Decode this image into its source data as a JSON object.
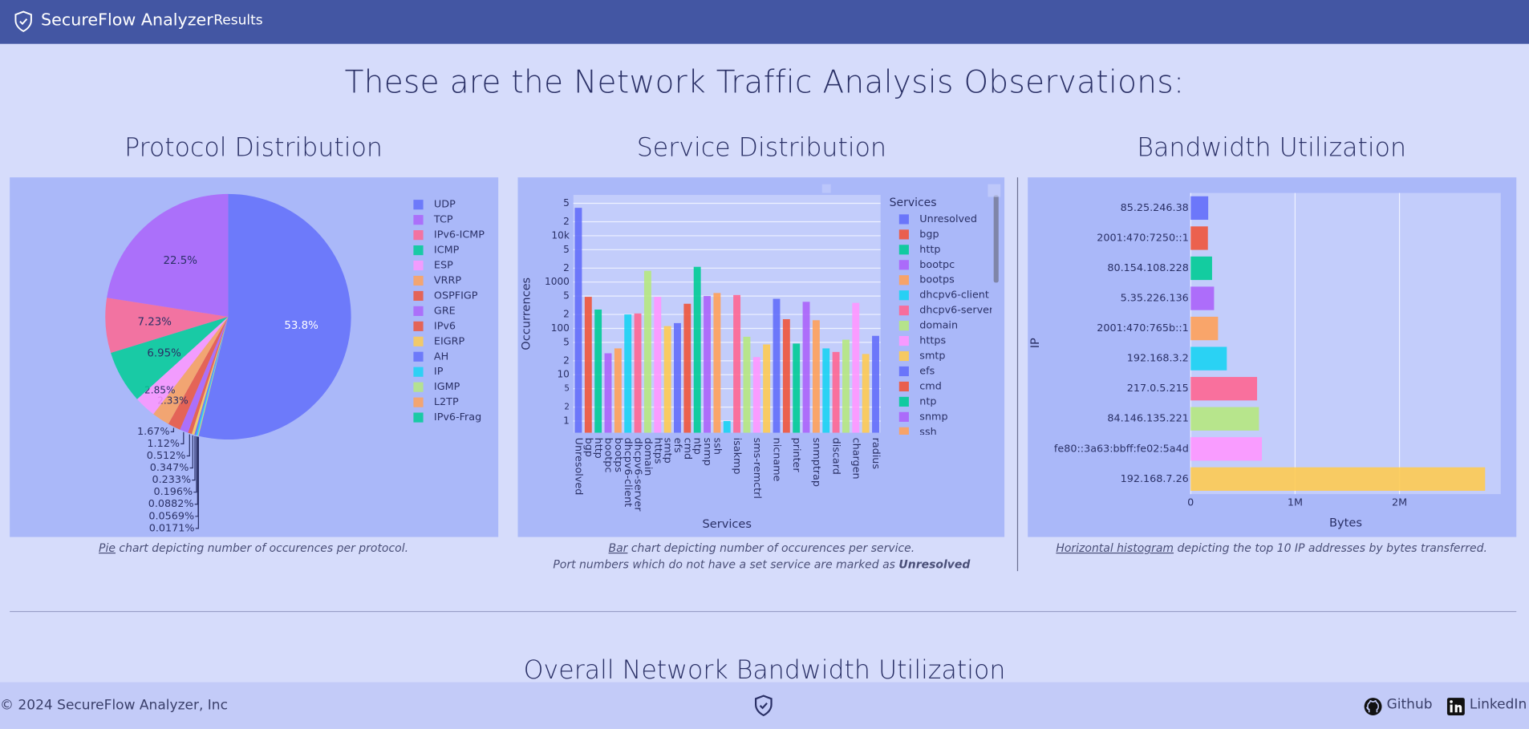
{
  "header": {
    "brand": "SecureFlow Analyzer",
    "nav": "Results"
  },
  "page_title": "These are the Network Traffic Analysis Observations:",
  "chart_data": [
    {
      "type": "pie",
      "title": "Protocol Distribution",
      "categories": [
        "UDP",
        "TCP",
        "IPv6-ICMP",
        "ICMP",
        "ESP",
        "VRRP",
        "OSPFIGP",
        "GRE",
        "IPv6",
        "EIGRP",
        "AH",
        "IP",
        "IGMP",
        "L2TP",
        "IPv6-Frag"
      ],
      "values": [
        53.8,
        22.5,
        7.23,
        6.95,
        2.85,
        2.33,
        1.67,
        1.12,
        0.512,
        0.347,
        0.233,
        0.196,
        0.0882,
        0.0569,
        0.0171
      ],
      "value_labels": [
        "53.8%",
        "22.5%",
        "7.23%",
        "6.95%",
        "2.85%",
        "2.33%",
        "1.67%",
        "1.12%",
        "0.512%",
        "0.347%",
        "0.233%",
        "0.196%",
        "0.0882%",
        "0.0569%",
        "0.0171%"
      ],
      "colors": [
        "#636efa",
        "#ab63fa",
        "#FF6692",
        "#00cc96",
        "#FF97FF",
        "#FFA15A",
        "#EF553B",
        "#ab63fa",
        "#EF553B",
        "#FECB52",
        "#636efa",
        "#19d3f3",
        "#B6E880",
        "#FFA15A",
        "#00cc96"
      ],
      "legend": "right"
    },
    {
      "type": "bar",
      "orientation": "v",
      "title": "Service Distribution",
      "categories": [
        "Unresolved",
        "bgp",
        "http",
        "bootpc",
        "bootps",
        "dhcpv6-client",
        "dhcpv6-server",
        "domain",
        "https",
        "smtp",
        "efs",
        "cmd",
        "ntp",
        "snmp",
        "ssh",
        null,
        "isakmp",
        null,
        "sms-remctrl",
        null,
        "nicname",
        null,
        "printer",
        null,
        "snmptrap",
        null,
        "discard",
        null,
        "chargen",
        null,
        "radius"
      ],
      "values": [
        40000,
        480,
        255,
        29,
        37,
        200,
        210,
        1750,
        480,
        112,
        130,
        340,
        2130,
        500,
        580,
        1,
        525,
        66,
        24,
        45,
        435,
        158,
        47,
        375,
        150,
        37,
        31,
        57,
        355,
        28,
        69
      ],
      "colors": [
        "#636efa",
        "#EF553B",
        "#00cc96",
        "#ab63fa",
        "#FFA15A",
        "#19d3f3",
        "#FF6692",
        "#B6E880",
        "#FF97FF",
        "#FECB52"
      ],
      "xlabel": "Services",
      "ylabel": "Occurrences",
      "legend_title": "Services",
      "legend": "right",
      "log_y": true,
      "grid": true,
      "ylim": [
        0.56,
        76000
      ],
      "yticks": [
        1,
        2,
        5,
        10,
        {
          "value": 20,
          "label": "2"
        },
        {
          "value": 50,
          "label": "5"
        },
        100,
        {
          "value": 200,
          "label": "2"
        },
        {
          "value": 500,
          "label": "5"
        },
        1000,
        {
          "value": 2000,
          "label": "2"
        },
        {
          "value": 5000,
          "label": "5"
        },
        {
          "value": 10000,
          "label": "10k"
        },
        {
          "value": 20000,
          "label": "2"
        },
        {
          "value": 50000,
          "label": "5"
        }
      ]
    },
    {
      "type": "bar",
      "orientation": "h",
      "title": "Bandwidth Utilization",
      "categories": [
        "85.25.246.38",
        "2001:470:7250::1",
        "80.154.108.228",
        "5.35.226.136",
        "2001:470:765b::1",
        "192.168.3.2",
        "217.0.5.215",
        "84.146.135.221",
        "fe80::3a63:bbff:fe02:5a4d",
        "192.168.7.26"
      ],
      "values": [
        168000,
        165000,
        205000,
        224000,
        262000,
        346000,
        636000,
        654000,
        682000,
        2820000
      ],
      "colors": [
        "#636efa",
        "#EF553B",
        "#00cc96",
        "#ab63fa",
        "#FFA15A",
        "#19d3f3",
        "#FF6692",
        "#B6E880",
        "#FF97FF",
        "#FECB52"
      ],
      "xlabel": "Bytes",
      "ylabel": "IP",
      "grid": true,
      "xlim": [
        0,
        2970000
      ],
      "xticks": [
        0,
        {
          "value": 1000000,
          "label": "1M"
        },
        {
          "value": 2000000,
          "label": "2M"
        }
      ]
    }
  ],
  "captions": [
    {
      "link": "Pie",
      "text": " chart depicting number of occurences per protocol."
    },
    {
      "link": "Bar",
      "text": " chart depicting number of occurences per service.",
      "note": "Port numbers which do not have a set service are marked as ",
      "note_bold": "Unresolved"
    },
    {
      "link": "Horizontal histogram",
      "text": " depicting the top 10 IP addresses by bytes transferred."
    }
  ],
  "section_title": "Overall Network Bandwidth Utilization",
  "footer": {
    "copyright": "© 2024 SecureFlow Analyzer, Inc",
    "links": [
      "Github",
      "LinkedIn"
    ]
  }
}
